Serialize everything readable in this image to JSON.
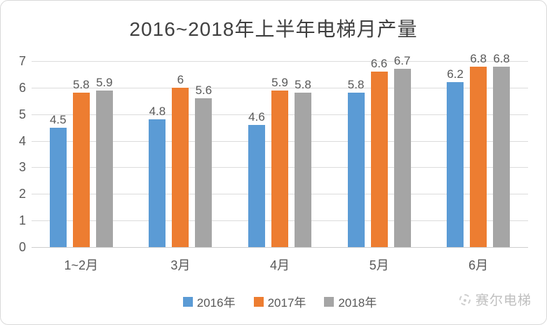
{
  "title": "2016~2018年上半年电梯月产量",
  "watermark": {
    "text": "赛尔电梯"
  },
  "colors": {
    "series_2016": "#5B9BD5",
    "series_2017": "#ED7D31",
    "series_2018": "#A5A5A5",
    "gridline": "#DCDCDC",
    "axis_text": "#595959",
    "title_text": "#404040",
    "frame_border": "#D9D9D9",
    "watermark_text": "#B5B5B5"
  },
  "chart_data": {
    "type": "bar",
    "title": "2016~2018年上半年电梯月产量",
    "categories": [
      "1~2月",
      "3月",
      "4月",
      "5月",
      "6月"
    ],
    "series": [
      {
        "name": "2016年",
        "color": "#5B9BD5",
        "values": [
          4.5,
          4.8,
          4.6,
          5.8,
          6.2
        ]
      },
      {
        "name": "2017年",
        "color": "#ED7D31",
        "values": [
          5.8,
          6,
          5.9,
          6.6,
          6.8
        ]
      },
      {
        "name": "2018年",
        "color": "#A5A5A5",
        "values": [
          5.9,
          5.6,
          5.8,
          6.7,
          6.8
        ]
      }
    ],
    "data_labels": true,
    "xlabel": "",
    "ylabel": "",
    "ylim": [
      0,
      7
    ],
    "yticks": [
      0,
      1,
      2,
      3,
      4,
      5,
      6,
      7
    ],
    "grid": true,
    "legend_position": "bottom"
  }
}
